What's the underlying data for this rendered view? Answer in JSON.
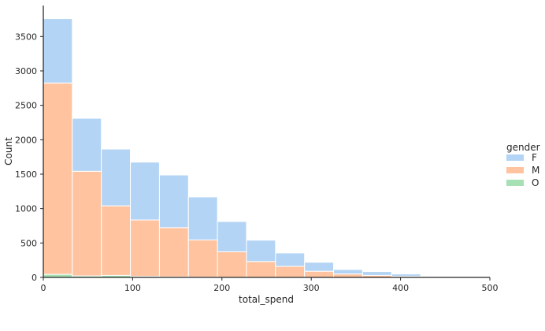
{
  "chart_data": {
    "type": "bar",
    "stacked": true,
    "title": "",
    "xlabel": "total_spend",
    "ylabel": "Count",
    "xlim": [
      0,
      500
    ],
    "ylim": [
      0,
      3950
    ],
    "x_ticks": [
      0,
      100,
      200,
      300,
      400,
      500
    ],
    "y_ticks": [
      0,
      500,
      1000,
      1500,
      2000,
      2500,
      3000,
      3500
    ],
    "bin_edges": [
      0,
      32.5,
      65,
      97.5,
      130,
      162.5,
      195,
      227.5,
      260,
      292.5,
      325,
      357.5,
      390,
      422.5,
      455,
      487.5
    ],
    "grid": false,
    "legend": {
      "title": "gender",
      "placement": "right"
    },
    "series": [
      {
        "name": "O",
        "color": "#a6e0b4",
        "values": [
          45,
          22,
          30,
          15,
          8,
          4,
          2,
          1,
          1,
          0,
          0,
          0,
          0,
          0,
          0
        ]
      },
      {
        "name": "M",
        "color": "#ffc39f",
        "values": [
          2780,
          1520,
          1010,
          820,
          715,
          540,
          370,
          230,
          160,
          90,
          50,
          30,
          15,
          5,
          2
        ]
      },
      {
        "name": "F",
        "color": "#b3d4f4",
        "values": [
          935,
          770,
          825,
          840,
          765,
          625,
          440,
          310,
          195,
          130,
          65,
          55,
          35,
          8,
          3
        ]
      }
    ],
    "legend_order": [
      "F",
      "M",
      "O"
    ]
  }
}
